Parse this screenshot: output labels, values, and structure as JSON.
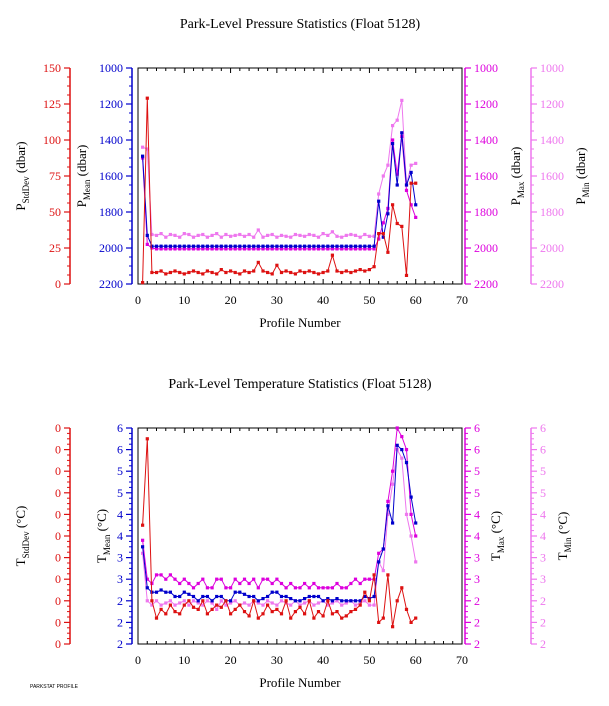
{
  "colors": {
    "stddev": "#dd1111",
    "mean": "#0000cc",
    "max": "#dd00dd",
    "min": "#ee77ee",
    "axis": "#000000"
  },
  "footer": "PARKSTAT PROFILE",
  "chart_data": [
    {
      "type": "line",
      "title": "Park-Level Pressure Statistics (Float 5128)",
      "xlabel": "Profile Number",
      "xlim": [
        0,
        70
      ],
      "xticks": [
        "0",
        "10",
        "20",
        "30",
        "40",
        "50",
        "60",
        "70"
      ],
      "axes": {
        "stddev": {
          "label": "P",
          "sub": "StdDev",
          "unit": " (dbar)",
          "ticks": [
            "150",
            "125",
            "100",
            "75",
            "50",
            "25",
            "0"
          ],
          "lim": [
            150,
            0
          ]
        },
        "mean": {
          "label": "P",
          "sub": "Mean",
          "unit": " (dbar)",
          "ticks": [
            "1000",
            "1200",
            "1400",
            "1600",
            "1800",
            "2000",
            "2200"
          ],
          "lim": [
            1000,
            2200
          ]
        },
        "max": {
          "label": "P",
          "sub": "Max",
          "unit": " (dbar)",
          "ticks": [
            "1000",
            "1200",
            "1400",
            "1600",
            "1800",
            "2000",
            "2200"
          ],
          "lim": [
            1000,
            2200
          ]
        },
        "min": {
          "label": "P",
          "sub": "Min",
          "unit": " (dbar)",
          "ticks": [
            "1000",
            "1200",
            "1400",
            "1600",
            "1800",
            "2000",
            "2200"
          ],
          "lim": [
            1000,
            2200
          ]
        }
      },
      "x": [
        1,
        2,
        3,
        4,
        5,
        6,
        7,
        8,
        9,
        10,
        11,
        12,
        13,
        14,
        15,
        16,
        17,
        18,
        19,
        20,
        21,
        22,
        23,
        24,
        25,
        26,
        27,
        28,
        29,
        30,
        31,
        32,
        33,
        34,
        35,
        36,
        37,
        38,
        39,
        40,
        41,
        42,
        43,
        44,
        45,
        46,
        47,
        48,
        49,
        50,
        51,
        52,
        53,
        54,
        55,
        56,
        57,
        58,
        59,
        60
      ],
      "series": [
        {
          "key": "min",
          "values": [
            1440,
            1450,
            1925,
            1930,
            1920,
            1940,
            1925,
            1930,
            1940,
            1920,
            1925,
            1940,
            1930,
            1925,
            1940,
            1930,
            1920,
            1940,
            1925,
            1935,
            1930,
            1925,
            1935,
            1925,
            1940,
            1900,
            1940,
            1930,
            1925,
            1940,
            1930,
            1935,
            1940,
            1925,
            1930,
            1935,
            1925,
            1930,
            1940,
            1920,
            1930,
            1910,
            1935,
            1940,
            1930,
            1925,
            1930,
            1940,
            1925,
            1935,
            1935,
            1700,
            1600,
            1540,
            1320,
            1290,
            1180,
            1650,
            1540,
            1530
          ]
        },
        {
          "key": "max",
          "values": [
            1500,
            1980,
            2000,
            2005,
            2005,
            2005,
            2005,
            2005,
            2005,
            2005,
            2005,
            2005,
            2005,
            2005,
            2005,
            2005,
            2005,
            2005,
            2005,
            2005,
            2005,
            2005,
            2005,
            2005,
            2005,
            2005,
            2005,
            2005,
            2005,
            2005,
            2005,
            2005,
            2005,
            2005,
            2005,
            2005,
            2005,
            2005,
            2005,
            2005,
            2005,
            2005,
            2005,
            2005,
            2005,
            2005,
            2005,
            2005,
            2005,
            2005,
            2005,
            1950,
            1860,
            1780,
            1400,
            1590,
            1380,
            1680,
            1760,
            1830
          ]
        },
        {
          "key": "mean",
          "values": [
            1490,
            1930,
            1990,
            1990,
            1990,
            1990,
            1990,
            1990,
            1990,
            1990,
            1990,
            1990,
            1990,
            1990,
            1990,
            1990,
            1990,
            1990,
            1990,
            1990,
            1990,
            1990,
            1990,
            1990,
            1990,
            1990,
            1990,
            1990,
            1990,
            1990,
            1990,
            1990,
            1990,
            1990,
            1990,
            1990,
            1990,
            1990,
            1990,
            1990,
            1990,
            1990,
            1990,
            1990,
            1990,
            1990,
            1990,
            1990,
            1990,
            1990,
            1990,
            1740,
            1940,
            1810,
            1420,
            1650,
            1360,
            1650,
            1580,
            1760
          ]
        },
        {
          "key": "stddev",
          "values": [
            1,
            129,
            8,
            8,
            9,
            7,
            8,
            9,
            8,
            7,
            8,
            9,
            8,
            7,
            9,
            8,
            7,
            10,
            8,
            9,
            8,
            7,
            9,
            8,
            9,
            15,
            9,
            8,
            7,
            13,
            8,
            9,
            8,
            7,
            9,
            8,
            9,
            8,
            7,
            8,
            9,
            20,
            9,
            8,
            9,
            8,
            9,
            10,
            9,
            10,
            12,
            35,
            35,
            22,
            55,
            42,
            40,
            6,
            70,
            70
          ]
        }
      ]
    },
    {
      "type": "line",
      "title": "Park-Level Temperature Statistics (Float 5128)",
      "xlabel": "Profile Number",
      "xlim": [
        0,
        70
      ],
      "xticks": [
        "0",
        "10",
        "20",
        "30",
        "40",
        "50",
        "60",
        "70"
      ],
      "axes": {
        "stddev": {
          "label": "T",
          "sub": "StdDev",
          "unit": " (°C)",
          "ticks": [
            "0",
            "0",
            "0",
            "0",
            "0",
            "0",
            "0",
            "0",
            "0",
            "0",
            "0"
          ],
          "lim": [
            1,
            0
          ]
        },
        "mean": {
          "label": "T",
          "sub": "Mean",
          "unit": " (°C)",
          "ticks": [
            "6",
            "6",
            "5",
            "5",
            "4",
            "4",
            "3",
            "3",
            "2",
            "2",
            "2"
          ],
          "lim": [
            6.5,
            1.5
          ]
        },
        "max": {
          "label": "T",
          "sub": "Max",
          "unit": " (°C)",
          "ticks": [
            "6",
            "6",
            "5",
            "5",
            "4",
            "4",
            "3",
            "3",
            "2",
            "2",
            "2"
          ],
          "lim": [
            6.5,
            1.5
          ]
        },
        "min": {
          "label": "T",
          "sub": "Min",
          "unit": " (°C)",
          "ticks": [
            "6",
            "6",
            "5",
            "5",
            "4",
            "4",
            "3",
            "3",
            "2",
            "2",
            "2"
          ],
          "lim": [
            6.5,
            1.5
          ]
        }
      },
      "x": [
        1,
        2,
        3,
        4,
        5,
        6,
        7,
        8,
        9,
        10,
        11,
        12,
        13,
        14,
        15,
        16,
        17,
        18,
        19,
        20,
        21,
        22,
        23,
        24,
        25,
        26,
        27,
        28,
        29,
        30,
        31,
        32,
        33,
        34,
        35,
        36,
        37,
        38,
        39,
        40,
        41,
        42,
        43,
        44,
        45,
        46,
        47,
        48,
        49,
        50,
        51,
        52,
        53,
        54,
        55,
        56,
        57,
        58,
        59,
        60
      ],
      "series": [
        {
          "key": "min",
          "values": [
            3.6,
            2.5,
            2.4,
            2.5,
            2.4,
            2.45,
            2.5,
            2.4,
            2.45,
            2.5,
            2.4,
            2.5,
            2.45,
            2.4,
            2.5,
            2.45,
            2.3,
            2.5,
            2.4,
            2.45,
            2.5,
            2.4,
            2.45,
            2.4,
            2.5,
            2.45,
            2.4,
            2.5,
            2.45,
            2.4,
            2.5,
            2.45,
            2.4,
            2.5,
            2.4,
            2.45,
            2.5,
            2.4,
            2.45,
            2.5,
            2.4,
            2.45,
            2.5,
            2.4,
            2.45,
            2.5,
            2.4,
            2.45,
            2.5,
            2.4,
            2.4,
            3.4,
            3.2,
            4.5,
            5.2,
            6.0,
            5.8,
            4.5,
            4.0,
            3.4
          ]
        },
        {
          "key": "max",
          "values": [
            3.9,
            3.0,
            2.9,
            3.1,
            3.1,
            3.0,
            3.1,
            3.0,
            2.9,
            3.0,
            2.9,
            2.8,
            2.9,
            3.0,
            2.8,
            2.8,
            3.0,
            3.0,
            2.8,
            2.8,
            3.0,
            2.9,
            3.0,
            2.9,
            3.0,
            2.8,
            3.0,
            3.0,
            2.9,
            3.0,
            2.9,
            2.8,
            2.9,
            2.8,
            2.8,
            2.9,
            2.8,
            2.9,
            2.8,
            2.8,
            2.8,
            2.8,
            2.9,
            2.8,
            2.8,
            2.9,
            3.0,
            2.9,
            3.0,
            3.0,
            3.0,
            3.6,
            3.7,
            4.8,
            5.5,
            6.5,
            6.3,
            6.0,
            4.5,
            4.0
          ]
        },
        {
          "key": "mean",
          "values": [
            3.75,
            2.8,
            2.7,
            2.7,
            2.75,
            2.7,
            2.7,
            2.6,
            2.6,
            2.7,
            2.65,
            2.6,
            2.5,
            2.6,
            2.6,
            2.5,
            2.6,
            2.6,
            2.5,
            2.5,
            2.7,
            2.7,
            2.65,
            2.6,
            2.6,
            2.5,
            2.55,
            2.6,
            2.7,
            2.7,
            2.6,
            2.6,
            2.55,
            2.5,
            2.5,
            2.55,
            2.6,
            2.6,
            2.6,
            2.5,
            2.55,
            2.5,
            2.55,
            2.5,
            2.5,
            2.5,
            2.5,
            2.5,
            2.6,
            2.55,
            2.6,
            3.4,
            3.7,
            4.7,
            4.3,
            6.1,
            6.0,
            5.7,
            4.9,
            4.3
          ]
        },
        {
          "key": "stddev",
          "values": [
            0.55,
            0.95,
            0.2,
            0.12,
            0.16,
            0.14,
            0.18,
            0.15,
            0.14,
            0.18,
            0.2,
            0.17,
            0.16,
            0.2,
            0.14,
            0.16,
            0.18,
            0.17,
            0.2,
            0.14,
            0.16,
            0.18,
            0.15,
            0.13,
            0.2,
            0.12,
            0.14,
            0.18,
            0.15,
            0.16,
            0.14,
            0.2,
            0.12,
            0.15,
            0.17,
            0.14,
            0.2,
            0.12,
            0.15,
            0.13,
            0.2,
            0.14,
            0.15,
            0.12,
            0.13,
            0.15,
            0.16,
            0.18,
            0.24,
            0.2,
            0.32,
            0.1,
            0.12,
            0.32,
            0.08,
            0.2,
            0.26,
            0.16,
            0.1,
            0.12
          ]
        }
      ]
    }
  ]
}
